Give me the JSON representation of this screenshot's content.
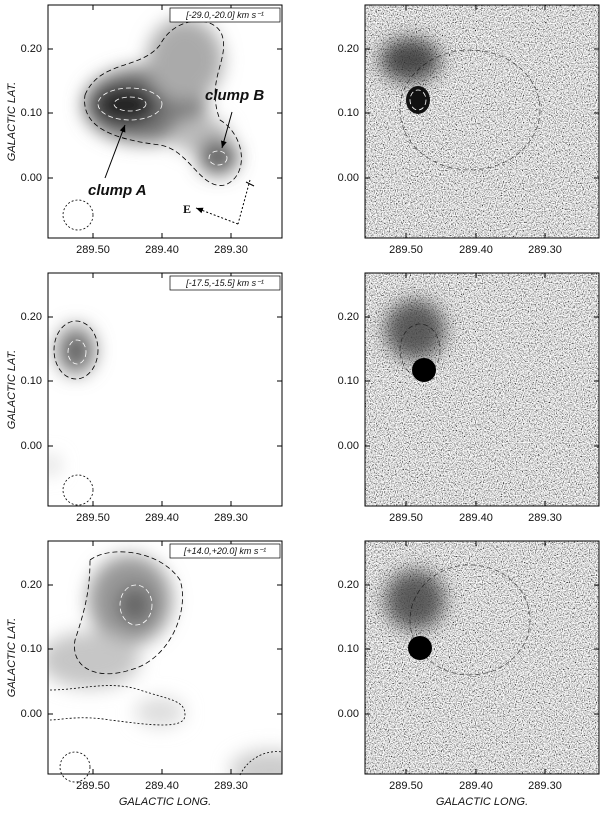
{
  "panels": [
    {
      "velocity_label": "[-29.0,-20.0] km s⁻¹",
      "y_label": "GALACTIC LAT.",
      "yticks": [
        "0.20",
        "0.10",
        "0.00"
      ],
      "xticks": [
        "289.50",
        "289.40",
        "289.30"
      ],
      "annotations": [
        "clump A",
        "clump B",
        "E"
      ]
    },
    {
      "yticks": [
        "0.20",
        "0.10",
        "0.00"
      ],
      "xticks": [
        "289.50",
        "289.40",
        "289.30"
      ]
    },
    {
      "velocity_label": "[-17.5,-15.5] km s⁻¹",
      "y_label": "GALACTIC LAT.",
      "yticks": [
        "0.20",
        "0.10",
        "0.00"
      ],
      "xticks": [
        "289.50",
        "289.40",
        "289.30"
      ]
    },
    {
      "yticks": [
        "0.20",
        "0.10",
        "0.00"
      ],
      "xticks": [
        "289.50",
        "289.40",
        "289.30"
      ]
    },
    {
      "velocity_label": "[+14.0,+20.0] km s⁻¹",
      "y_label": "GALACTIC LAT.",
      "x_label": "GALACTIC LONG.",
      "yticks": [
        "0.20",
        "0.10",
        "0.00"
      ],
      "xticks": [
        "289.50",
        "289.40",
        "289.30"
      ]
    },
    {
      "x_label": "GALACTIC LONG.",
      "yticks": [
        "0.20",
        "0.10",
        "0.00"
      ],
      "xticks": [
        "289.50",
        "289.40",
        "289.30"
      ]
    }
  ]
}
